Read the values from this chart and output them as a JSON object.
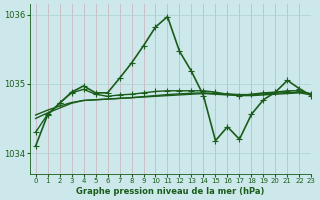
{
  "bg_color": "#cce8ea",
  "grid_color": "#b0d0d0",
  "line_color": "#1a5c1a",
  "text_color": "#1a5c1a",
  "xlabel": "Graphe pression niveau de la mer (hPa)",
  "xlim": [
    -0.5,
    23
  ],
  "ylim": [
    1033.7,
    1036.15
  ],
  "yticks": [
    1034,
    1035,
    1036
  ],
  "xticks": [
    0,
    1,
    2,
    3,
    4,
    5,
    6,
    7,
    8,
    9,
    10,
    11,
    12,
    13,
    14,
    15,
    16,
    17,
    18,
    19,
    20,
    21,
    22,
    23
  ],
  "series": [
    {
      "x": [
        0,
        1,
        2,
        3,
        4,
        5,
        6,
        7,
        8,
        9,
        10,
        11,
        12,
        13,
        14,
        15,
        16,
        17,
        18,
        19,
        20,
        21,
        22,
        23
      ],
      "y": [
        1034.55,
        1034.62,
        1034.68,
        1034.73,
        1034.76,
        1034.77,
        1034.78,
        1034.79,
        1034.8,
        1034.81,
        1034.82,
        1034.83,
        1034.84,
        1034.85,
        1034.86,
        1034.85,
        1034.84,
        1034.83,
        1034.83,
        1034.84,
        1034.85,
        1034.86,
        1034.87,
        1034.84
      ],
      "marker": null,
      "linewidth": 1.0
    },
    {
      "x": [
        0,
        1,
        2,
        3,
        4,
        5,
        6,
        7,
        8,
        9,
        10,
        11,
        12,
        13,
        14,
        15,
        16,
        17,
        18,
        19,
        20,
        21,
        22,
        23
      ],
      "y": [
        1034.5,
        1034.58,
        1034.65,
        1034.72,
        1034.76,
        1034.77,
        1034.78,
        1034.79,
        1034.8,
        1034.815,
        1034.83,
        1034.845,
        1034.855,
        1034.865,
        1034.87,
        1034.86,
        1034.855,
        1034.845,
        1034.845,
        1034.855,
        1034.865,
        1034.875,
        1034.88,
        1034.86
      ],
      "marker": null,
      "linewidth": 1.0
    },
    {
      "x": [
        0,
        1,
        2,
        3,
        4,
        5,
        6,
        7,
        8,
        9,
        10,
        11,
        12,
        13,
        14,
        15,
        16,
        17,
        18,
        19,
        20,
        21,
        22,
        23
      ],
      "y": [
        1034.3,
        1034.56,
        1034.72,
        1034.87,
        1034.92,
        1034.85,
        1034.82,
        1034.84,
        1034.85,
        1034.87,
        1034.89,
        1034.9,
        1034.9,
        1034.9,
        1034.9,
        1034.88,
        1034.85,
        1034.83,
        1034.85,
        1034.87,
        1034.88,
        1034.9,
        1034.9,
        1034.85
      ],
      "marker": "+",
      "markersize": 4,
      "linewidth": 1.0
    },
    {
      "x": [
        0,
        1,
        2,
        3,
        4,
        5,
        6,
        7,
        8,
        9,
        10,
        11,
        12,
        13,
        14,
        15,
        16,
        17,
        18,
        19,
        20,
        21,
        22,
        23
      ],
      "y": [
        1034.1,
        1034.55,
        1034.72,
        1034.88,
        1034.97,
        1034.87,
        1034.87,
        1035.08,
        1035.3,
        1035.55,
        1035.82,
        1035.97,
        1035.47,
        1035.18,
        1034.83,
        1034.18,
        1034.38,
        1034.2,
        1034.56,
        1034.77,
        1034.88,
        1035.05,
        1034.93,
        1034.83
      ],
      "marker": "+",
      "markersize": 4,
      "linewidth": 1.2
    }
  ]
}
